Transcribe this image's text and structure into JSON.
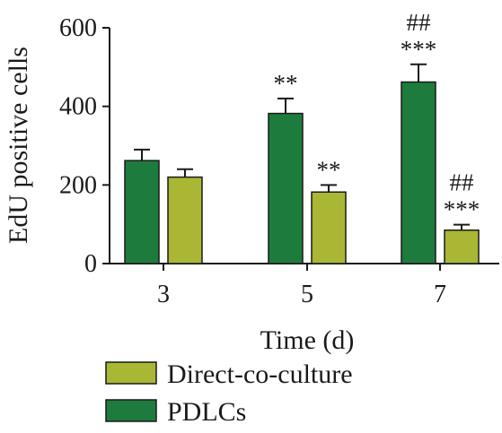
{
  "chart_data": {
    "type": "bar",
    "xlabel": "Time (d)",
    "ylabel": "EdU positive cells",
    "categories": [
      "3",
      "5",
      "7"
    ],
    "ylim": [
      0,
      600
    ],
    "yticks": [
      "0",
      "200",
      "400",
      "600"
    ],
    "series": [
      {
        "name": "PDLCs",
        "color": "#1e7b3e",
        "values": [
          262,
          382,
          462
        ],
        "errors": [
          28,
          38,
          45
        ],
        "annotations": [
          [],
          [
            "**"
          ],
          [
            "***",
            "##"
          ]
        ]
      },
      {
        "name": "Direct-co-culture",
        "color": "#a9b735",
        "values": [
          220,
          182,
          85
        ],
        "errors": [
          20,
          18,
          14
        ],
        "annotations": [
          [],
          [
            "**"
          ],
          [
            "***",
            "##"
          ]
        ]
      }
    ],
    "legend": [
      {
        "label": "Direct-co-culture",
        "color": "#a9b735"
      },
      {
        "label": "PDLCs",
        "color": "#1e7b3e"
      }
    ],
    "grid": false,
    "legend_position": "bottom"
  }
}
